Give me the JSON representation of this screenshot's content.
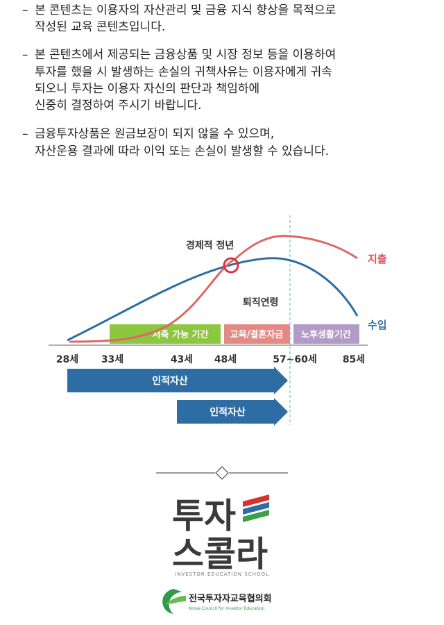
{
  "disclaimers": [
    [
      "본 콘텐츠는 이용자의 자산관리 및 금융 지식 향상을  목적으로",
      "작성된 교육 콘텐츠입니다."
    ],
    [
      "본 콘텐츠에서 제공되는 금융상품 및 시장 정보 등을 이용하여",
      "투자를 했을 시  발생하는 손실의 귀책사유는 이용자에게 귀속",
      "되오니 투자는 이용자 자신의 판단과 책임하에",
      "신중히 결정하여 주시기 바랍니다."
    ],
    [
      "금융투자상품은 원금보장이 되지 않을 수 있으며,",
      "자산운용 결과에 따라 이익 또는 손실이 발생할 수 있습니다."
    ]
  ],
  "diagram": {
    "point_label": "경제적 정년",
    "retirement_label": "퇴직연령",
    "expense_label": "지출",
    "income_label": "수입",
    "periods": [
      "저축 가능 기간",
      "교육/결혼자금",
      "노후생활기간"
    ],
    "ages": [
      "28세",
      "33세",
      "43세",
      "48세",
      "57~60세",
      "85세"
    ],
    "arrows": [
      "인적자산",
      "인적자산"
    ]
  },
  "logo": {
    "title_lines": [
      "투자",
      "스콜라"
    ],
    "tagline": "INVESTOR EDUCATION SCHOOL",
    "org_name": "전국투자자교육협의회",
    "org_english": "Korea Council for Investor Education"
  }
}
